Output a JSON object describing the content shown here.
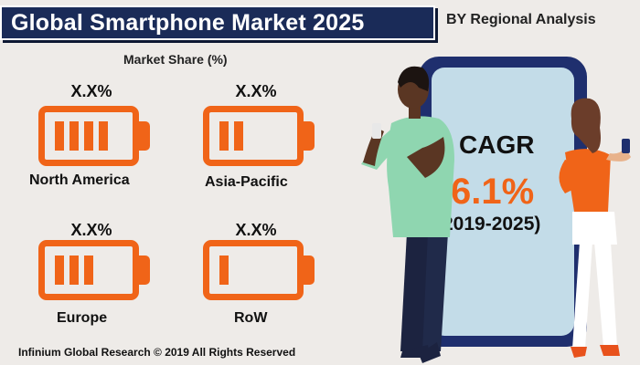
{
  "header": {
    "title": "Global Smartphone Market 2025",
    "subtitle": "BY Regional Analysis"
  },
  "market_share_label": "Market Share (%)",
  "regions": [
    {
      "name": "North America",
      "value_text": "X.X%",
      "level": 0.8
    },
    {
      "name": "Asia-Pacific",
      "value_text": "X.X%",
      "level": 0.4
    },
    {
      "name": "Europe",
      "value_text": "X.X%",
      "level": 0.6
    },
    {
      "name": "RoW",
      "value_text": "X.X%",
      "level": 0.2
    }
  ],
  "cagr": {
    "label": "CAGR",
    "value": "6.1%",
    "period": "(2019-2025)"
  },
  "footer": "Infinium Global Research © 2019 All Rights Reserved",
  "colors": {
    "accent": "#f06418",
    "navy": "#1a2b58",
    "phone_body": "#1f2f6e",
    "phone_screen": "#c3dce8"
  }
}
